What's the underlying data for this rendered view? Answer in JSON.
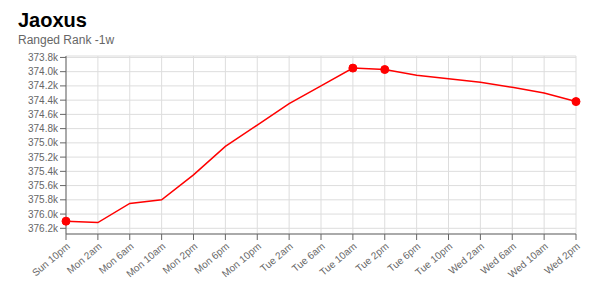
{
  "chart_data": {
    "type": "line",
    "title": "Jaoxus",
    "subtitle": "Ranged Rank -1w",
    "categories": [
      "Sun 10pm",
      "Mon 2am",
      "Mon 6am",
      "Mon 10am",
      "Mon 2pm",
      "Mon 6pm",
      "Mon 10pm",
      "Tue 2am",
      "Tue 6am",
      "Tue 10am",
      "Tue 2pm",
      "Tue 6pm",
      "Tue 10pm",
      "Wed 2am",
      "Wed 6am",
      "Wed 10am",
      "Wed 2pm"
    ],
    "series": [
      {
        "type": "line",
        "color": "#ff0000",
        "values": [
          376.1,
          376.12,
          375.85,
          375.8,
          375.45,
          375.05,
          374.75,
          374.45,
          374.2,
          373.95,
          373.97,
          374.05,
          374.1,
          374.15,
          374.22,
          374.3,
          374.42
        ]
      },
      {
        "type": "scatter",
        "marker": "circle",
        "color": "#ff0000",
        "values": [
          376.1,
          null,
          null,
          null,
          null,
          null,
          null,
          null,
          null,
          373.95,
          373.97,
          null,
          null,
          null,
          null,
          null,
          374.42
        ]
      }
    ],
    "ylim": [
      376.28,
      373.78
    ],
    "yticks": [
      {
        "value": 373.8,
        "label": "373.8k"
      },
      {
        "value": 374.0,
        "label": "374.0k"
      },
      {
        "value": 374.2,
        "label": "374.2k"
      },
      {
        "value": 374.4,
        "label": "374.4k"
      },
      {
        "value": 374.6,
        "label": "374.6k"
      },
      {
        "value": 374.8,
        "label": "374.8k"
      },
      {
        "value": 375.0,
        "label": "375.0k"
      },
      {
        "value": 375.2,
        "label": "375.2k"
      },
      {
        "value": 375.4,
        "label": "375.4k"
      },
      {
        "value": 375.6,
        "label": "375.6k"
      },
      {
        "value": 375.8,
        "label": "375.8k"
      },
      {
        "value": 376.0,
        "label": "376.0k"
      },
      {
        "value": 376.2,
        "label": "376.2k"
      }
    ],
    "grid": true
  }
}
